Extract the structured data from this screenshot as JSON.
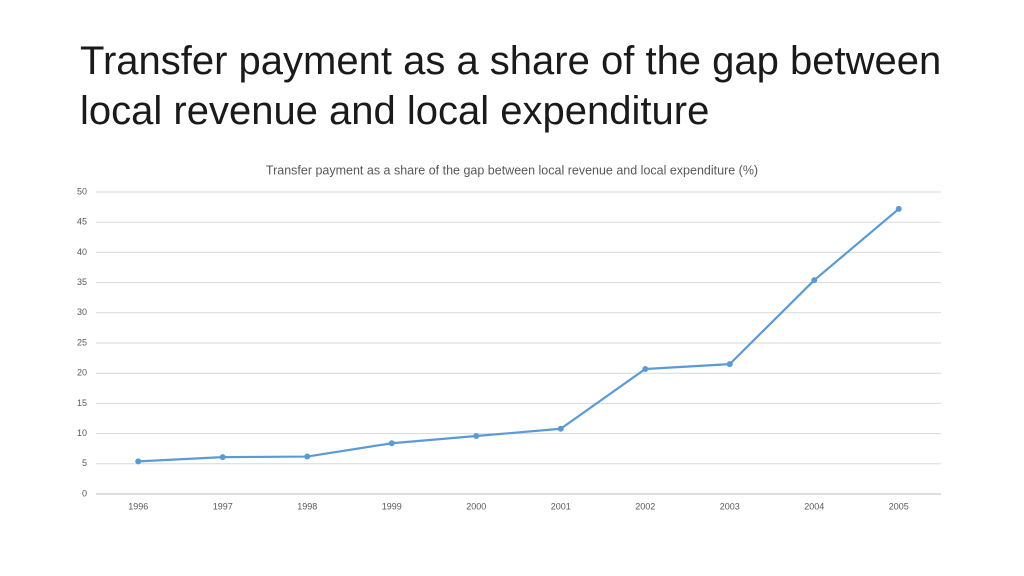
{
  "slide_title": "Transfer payment as a share of the gap between local revenue and local expenditure",
  "chart_data": {
    "type": "line",
    "title": "Transfer payment as a share of the gap between local revenue and local expenditure (%)",
    "categories": [
      "1996",
      "1997",
      "1998",
      "1999",
      "2000",
      "2001",
      "2002",
      "2003",
      "2004",
      "2005"
    ],
    "values": [
      5.4,
      6.1,
      6.2,
      8.4,
      9.6,
      10.8,
      20.7,
      21.5,
      35.4,
      47.2
    ],
    "color": "#5b9bd5",
    "ylim": [
      0,
      50
    ],
    "yticks": [
      0,
      5,
      10,
      15,
      20,
      25,
      30,
      35,
      40,
      45,
      50
    ],
    "grid": true
  }
}
